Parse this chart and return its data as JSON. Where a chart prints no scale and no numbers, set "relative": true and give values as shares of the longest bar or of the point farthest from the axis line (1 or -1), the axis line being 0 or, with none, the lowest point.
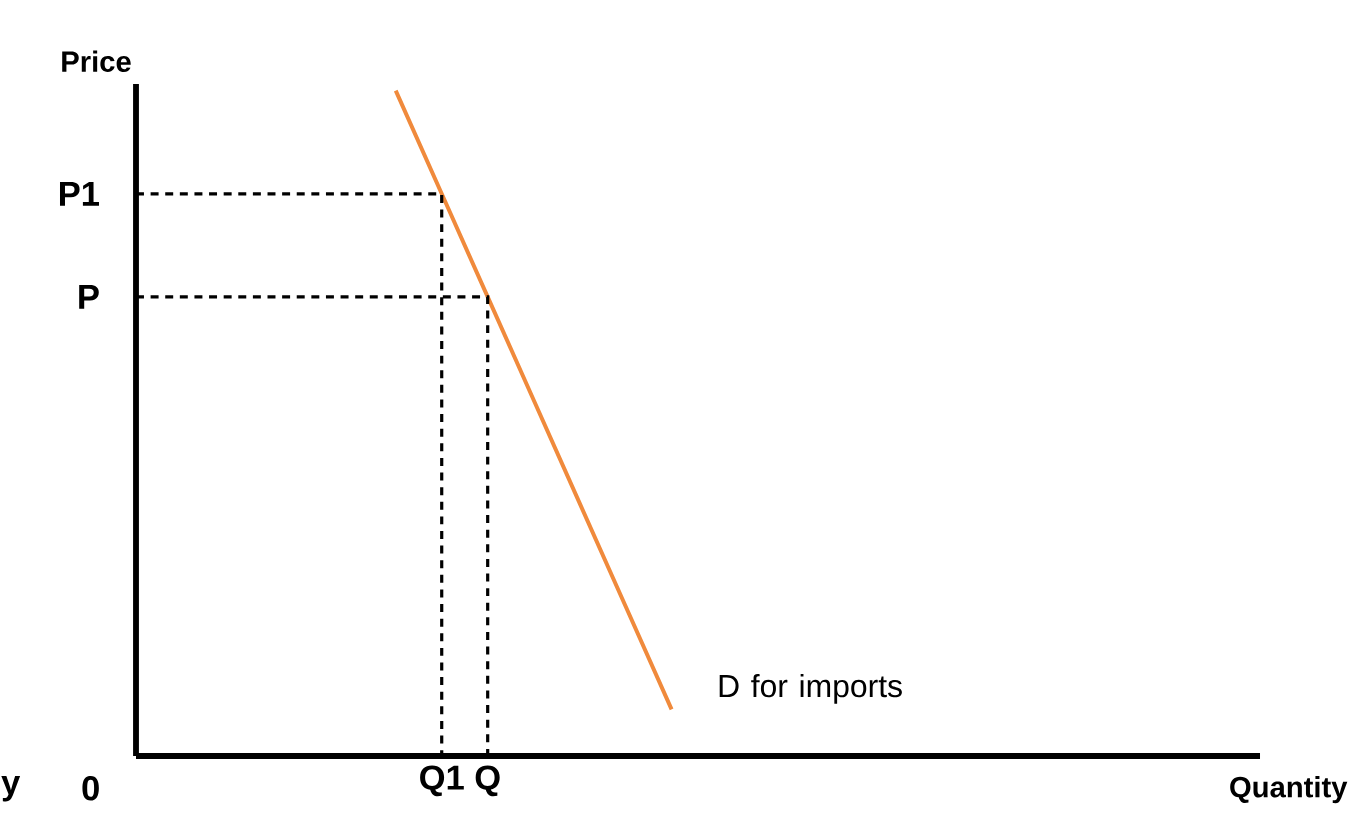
{
  "chart_data": {
    "type": "line",
    "relative": true,
    "categories": [
      null,
      "Q1",
      "Q",
      null,
      null,
      null,
      null
    ],
    "series": [
      {
        "color": "#f08a3c",
        "values": [
          1,
          0.845,
          0.69,
          0.535,
          0.38,
          0.225,
          0.07
        ]
      }
    ],
    "ref_lines": [
      {
        "axis": "y",
        "value": 0.845,
        "label": "P1",
        "line_style": "dashed"
      },
      {
        "axis": "y",
        "value": 0.69,
        "label": "P",
        "line_style": "dashed"
      }
    ],
    "annotations": [
      "D for imports",
      "0",
      "y",
      "Price",
      "Quantity"
    ],
    "marker": "none",
    "line_style": "solid"
  }
}
